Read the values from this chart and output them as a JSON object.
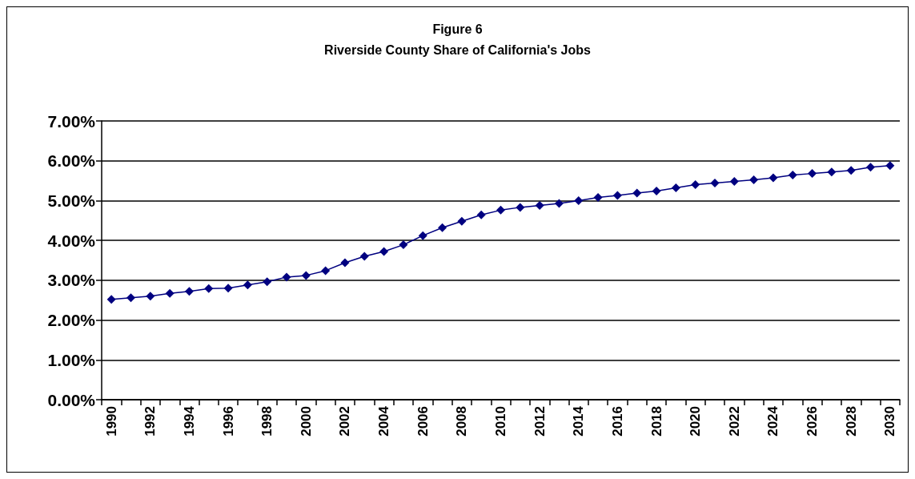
{
  "chart_data": {
    "type": "line",
    "title": "Figure 6",
    "subtitle": "Riverside County Share of California's Jobs",
    "categories": [
      "1990",
      null,
      "1992",
      null,
      "1994",
      null,
      "1996",
      null,
      "1998",
      null,
      "2000",
      null,
      "2002",
      null,
      "2004",
      null,
      "2006",
      null,
      "2008",
      null,
      "2010",
      null,
      "2012",
      null,
      "2014",
      null,
      "2016",
      null,
      "2018",
      null,
      "2020",
      null,
      "2022",
      null,
      "2024",
      null,
      "2026",
      null,
      "2028",
      null,
      "2030"
    ],
    "series": [
      {
        "color": "#000080",
        "values": [
          2.52,
          2.56,
          2.6,
          2.67,
          2.72,
          2.79,
          2.8,
          2.88,
          2.96,
          3.08,
          3.12,
          3.24,
          3.44,
          3.6,
          3.72,
          3.89,
          4.12,
          4.32,
          4.48,
          4.64,
          4.76,
          4.83,
          4.88,
          4.93,
          5.0,
          5.08,
          5.13,
          5.19,
          5.24,
          5.32,
          5.4,
          5.44,
          5.48,
          5.52,
          5.57,
          5.64,
          5.68,
          5.72,
          5.76,
          5.84,
          5.88
        ]
      }
    ],
    "ylim": [
      0,
      7
    ],
    "yticks": [
      {
        "value": 0,
        "label": "0.00%"
      },
      {
        "value": 1,
        "label": "1.00%"
      },
      {
        "value": 2,
        "label": "2.00%"
      },
      {
        "value": 3,
        "label": "3.00%"
      },
      {
        "value": 4,
        "label": "4.00%"
      },
      {
        "value": 5,
        "label": "5.00%"
      },
      {
        "value": 6,
        "label": "6.00%"
      },
      {
        "value": 7,
        "label": "7.00%"
      }
    ],
    "grid": "y",
    "marker": "diamond",
    "line_style": "solid"
  }
}
